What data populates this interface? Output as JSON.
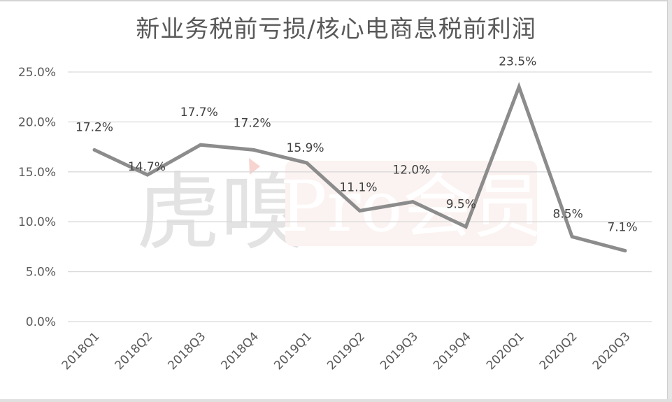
{
  "chart_data": {
    "type": "line",
    "title": "新业务税前亏损/核心电商息税前利润",
    "xlabel": "",
    "ylabel": "",
    "categories": [
      "2018Q1",
      "2018Q2",
      "2018Q3",
      "2018Q4",
      "2019Q1",
      "2019Q2",
      "2019Q3",
      "2019Q4",
      "2020Q1",
      "2020Q2",
      "2020Q3"
    ],
    "series": [
      {
        "name": "新业务税前亏损/核心电商息税前利润",
        "values": [
          17.2,
          14.7,
          17.7,
          17.2,
          15.9,
          11.1,
          12.0,
          9.5,
          23.5,
          8.5,
          7.1
        ],
        "data_labels": [
          "17.2%",
          "14.7%",
          "17.7%",
          "17.2%",
          "15.9%",
          "11.1%",
          "12.0%",
          "9.5%",
          "23.5%",
          "8.5%",
          "7.1%"
        ],
        "color": "#8c8c8c"
      }
    ],
    "y_ticks": [
      "0.0%",
      "5.0%",
      "10.0%",
      "15.0%",
      "20.0%",
      "25.0%"
    ],
    "ylim": [
      0,
      25
    ],
    "grid": true,
    "legend": "none",
    "x_tick_rotation": -45
  },
  "watermark": {
    "brand": "虎嗅",
    "badge": "Pro会员"
  },
  "colors": {
    "line": "#8c8c8c",
    "grid": "#d9d9d9",
    "text": "#595959",
    "watermark_accent": "#f2b8b0"
  }
}
